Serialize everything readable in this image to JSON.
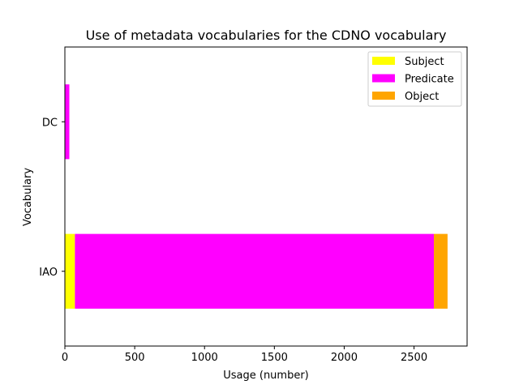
{
  "chart_data": {
    "type": "bar",
    "orientation": "horizontal",
    "stacked": true,
    "title": "Use of metadata vocabularies for the CDNO vocabulary",
    "xlabel": "Usage (number)",
    "ylabel": "Vocabulary",
    "categories": [
      "IAO",
      "DC"
    ],
    "series": [
      {
        "name": "Subject",
        "color": "#ffff00",
        "values": [
          72,
          0
        ]
      },
      {
        "name": "Predicate",
        "color": "#ff00ff",
        "values": [
          2570,
          32
        ]
      },
      {
        "name": "Object",
        "color": "#ffa500",
        "values": [
          98,
          0
        ]
      }
    ],
    "xlim": [
      0,
      2880
    ],
    "xticks": [
      0,
      500,
      1000,
      1500,
      2000,
      2500
    ],
    "legend": "top-right",
    "grid": false
  }
}
